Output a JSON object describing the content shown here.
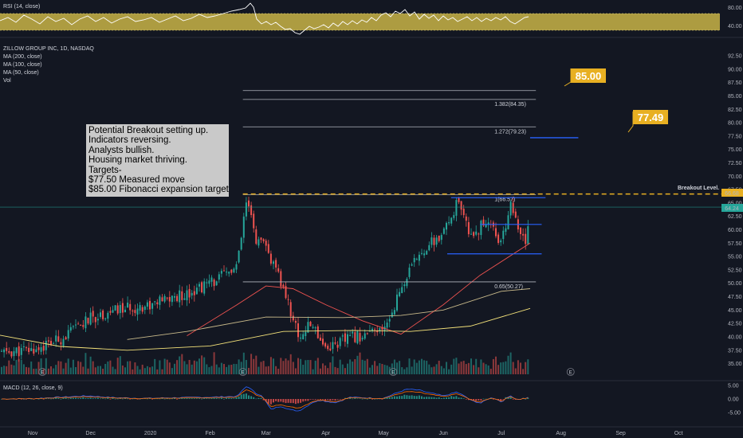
{
  "chart_data": {
    "type": "candlestick",
    "title": "ZILLOW GROUP INC, 1D, NASDAQ",
    "indicators": [
      "MA (200, close)",
      "MA (100, close)",
      "MA (50, close)",
      "Vol"
    ],
    "rsi_label": "RSI (14, close)",
    "macd_label": "MACD (12, 26, close, 9)",
    "price_ylim": [
      33,
      94
    ],
    "price_ticks": [
      "92.50",
      "90.00",
      "87.50",
      "85.00",
      "82.50",
      "80.00",
      "77.50",
      "75.00",
      "72.50",
      "70.00",
      "67.50",
      "65.00",
      "62.50",
      "60.00",
      "57.50",
      "55.00",
      "52.50",
      "50.00",
      "47.50",
      "45.00",
      "42.50",
      "40.00",
      "37.50",
      "35.00"
    ],
    "rsi_ticks": [
      "80.00",
      "40.00"
    ],
    "macd_ticks": [
      "5.00",
      "0.00",
      "-5.00"
    ],
    "x_ticks": [
      "Nov",
      "Dec",
      "2020",
      "Feb",
      "Mar",
      "Apr",
      "May",
      "Jun",
      "Jul",
      "Aug",
      "Sep",
      "Oct"
    ],
    "price_path": [
      {
        "date": "2019-10-15",
        "price": 37.0
      },
      {
        "date": "2019-11-01",
        "price": 37.5
      },
      {
        "date": "2019-11-15",
        "price": 39.5
      },
      {
        "date": "2019-12-01",
        "price": 43.5
      },
      {
        "date": "2019-12-15",
        "price": 45.0
      },
      {
        "date": "2020-01-01",
        "price": 46.0
      },
      {
        "date": "2020-01-15",
        "price": 47.5
      },
      {
        "date": "2020-02-01",
        "price": 50.0
      },
      {
        "date": "2020-02-15",
        "price": 53.0
      },
      {
        "date": "2020-02-20",
        "price": 65.5
      },
      {
        "date": "2020-02-25",
        "price": 58.0
      },
      {
        "date": "2020-03-01",
        "price": 56.5
      },
      {
        "date": "2020-03-10",
        "price": 49.0
      },
      {
        "date": "2020-03-18",
        "price": 40.0
      },
      {
        "date": "2020-03-25",
        "price": 42.5
      },
      {
        "date": "2020-04-01",
        "price": 38.0
      },
      {
        "date": "2020-04-15",
        "price": 40.0
      },
      {
        "date": "2020-05-01",
        "price": 41.0
      },
      {
        "date": "2020-05-10",
        "price": 49.0
      },
      {
        "date": "2020-05-20",
        "price": 56.0
      },
      {
        "date": "2020-06-01",
        "price": 59.0
      },
      {
        "date": "2020-06-08",
        "price": 65.0
      },
      {
        "date": "2020-06-15",
        "price": 59.0
      },
      {
        "date": "2020-06-25",
        "price": 62.0
      },
      {
        "date": "2020-07-01",
        "price": 57.0
      },
      {
        "date": "2020-07-06",
        "price": 65.5
      },
      {
        "date": "2020-07-10",
        "price": 59.0
      },
      {
        "date": "2020-07-14",
        "price": 58.0
      },
      {
        "date": "2020-07-16",
        "price": 64.24
      }
    ],
    "current_price": "64.24",
    "breakout_price": "66.68",
    "ma_series": [
      {
        "name": "MA 50",
        "color": "#ef5350",
        "points": [
          {
            "date": "2020-01-20",
            "price": 40.2
          },
          {
            "date": "2020-02-15",
            "price": 46
          },
          {
            "date": "2020-03-01",
            "price": 49.5
          },
          {
            "date": "2020-03-15",
            "price": 49
          },
          {
            "date": "2020-04-01",
            "price": 46
          },
          {
            "date": "2020-04-20",
            "price": 43
          },
          {
            "date": "2020-05-10",
            "price": 40.5
          },
          {
            "date": "2020-06-01",
            "price": 46
          },
          {
            "date": "2020-06-20",
            "price": 51.5
          },
          {
            "date": "2020-07-16",
            "price": 57.5
          }
        ]
      },
      {
        "name": "MA 100",
        "color": "#c8b98a",
        "points": [
          {
            "date": "2019-12-20",
            "price": 39.5
          },
          {
            "date": "2020-01-20",
            "price": 41
          },
          {
            "date": "2020-03-01",
            "price": 43.7
          },
          {
            "date": "2020-04-10",
            "price": 43.6
          },
          {
            "date": "2020-05-10",
            "price": 44
          },
          {
            "date": "2020-06-01",
            "price": 45
          },
          {
            "date": "2020-07-01",
            "price": 48.5
          },
          {
            "date": "2020-07-16",
            "price": 49
          }
        ]
      },
      {
        "name": "MA 200",
        "color": "#f4e27a",
        "points": [
          {
            "date": "2019-10-15",
            "price": 40.3
          },
          {
            "date": "2019-11-15",
            "price": 38.2
          },
          {
            "date": "2019-12-20",
            "price": 37.5
          },
          {
            "date": "2020-02-01",
            "price": 38.3
          },
          {
            "date": "2020-03-10",
            "price": 41
          },
          {
            "date": "2020-04-15",
            "price": 41.2
          },
          {
            "date": "2020-05-15",
            "price": 41
          },
          {
            "date": "2020-06-15",
            "price": 42
          },
          {
            "date": "2020-07-16",
            "price": 45.3
          }
        ]
      }
    ],
    "fib_levels": [
      {
        "label": "1.382(84.35)",
        "price": 84.35
      },
      {
        "label": "1.272(79.23)",
        "price": 79.23
      },
      {
        "label": "1(66.57)",
        "price": 66.57
      },
      {
        "label": "0.65(50.27)",
        "price": 50.27
      }
    ],
    "fib_extra_price": 86.0,
    "breakout_label": "Breakout Level.",
    "channel_lines": [
      {
        "price": 66.0,
        "from": "2020-06-05",
        "to": "2020-07-24"
      },
      {
        "price": 61.0,
        "from": "2020-06-20",
        "to": "2020-07-22"
      },
      {
        "price": 55.5,
        "from": "2020-06-03",
        "to": "2020-07-22"
      }
    ],
    "target_line": {
      "price": 77.2,
      "from": "2020-07-16",
      "to": "2020-08-10"
    },
    "targets": [
      {
        "label": "85.00",
        "price": 85.0
      },
      {
        "label": "77.49",
        "price": 77.49
      }
    ],
    "earnings_marker": "E",
    "earnings_dates": [
      "2019-11-06",
      "2020-02-18",
      "2020-05-06",
      "2020-08-06"
    ]
  },
  "note": {
    "lines": [
      "Potential Breakout setting up.",
      "Indicators reversing.",
      "Analysts bullish.",
      "Housing market thriving.",
      "Targets-",
      "$77.50 Measured move",
      "$85.00 Fibonacci expansion target"
    ]
  },
  "colors": {
    "up": "#26a69a",
    "down": "#ef5350",
    "fib": "#b2b5be",
    "blue": "#2962ff",
    "gold": "#e8b022",
    "rsi_band": "#c9b446",
    "background": "#131722"
  }
}
